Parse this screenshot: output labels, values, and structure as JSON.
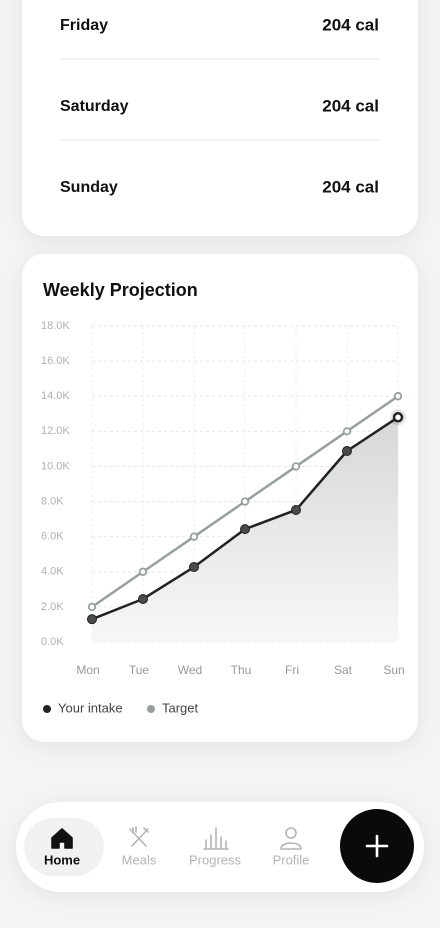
{
  "day_rows": [
    {
      "day": "Friday",
      "calories": "204 cal"
    },
    {
      "day": "Saturday",
      "calories": "204 cal"
    },
    {
      "day": "Sunday",
      "calories": "204 cal"
    }
  ],
  "chart_data": {
    "type": "line",
    "title": "Weekly Projection",
    "categories": [
      "Mon",
      "Tue",
      "Wed",
      "Thu",
      "Fri",
      "Sat",
      "Sun"
    ],
    "series": [
      {
        "name": "Your intake",
        "color": "#222222",
        "values": [
          1300,
          2450,
          4270,
          6430,
          7520,
          10880,
          12800
        ]
      },
      {
        "name": "Target",
        "color": "#98a09c",
        "values": [
          2000,
          4000,
          6000,
          8000,
          10000,
          12000,
          14000
        ]
      }
    ],
    "ylim": [
      0,
      18000
    ],
    "yticks": [
      {
        "value": 0,
        "label": "0.0K"
      },
      {
        "value": 2000,
        "label": "2.0K"
      },
      {
        "value": 4000,
        "label": "4.0K"
      },
      {
        "value": 6000,
        "label": "6.0K"
      },
      {
        "value": 8000,
        "label": "8.0K"
      },
      {
        "value": 10000,
        "label": "10.0K"
      },
      {
        "value": 12000,
        "label": "12.0K"
      },
      {
        "value": 14000,
        "label": "14.0K"
      },
      {
        "value": 16000,
        "label": "16.0K"
      },
      {
        "value": 18000,
        "label": "18.0K"
      }
    ],
    "grid": true,
    "legend": "bottom-left"
  },
  "nav": {
    "items": [
      "Home",
      "Meals",
      "Progress",
      "Profile"
    ],
    "active_index": 0
  }
}
